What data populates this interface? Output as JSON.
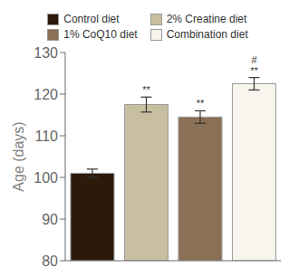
{
  "chart_data": {
    "type": "bar",
    "categories": [
      "Control diet",
      "2% Creatine diet",
      "1% CoQ10 diet",
      "Combination diet"
    ],
    "values": [
      101.0,
      117.5,
      114.5,
      122.5
    ],
    "errors": [
      1.0,
      1.8,
      1.5,
      1.5
    ],
    "colors": [
      "#2b1a0a",
      "#c8bfa0",
      "#8b7055",
      "#f8f4ee"
    ],
    "ylabel": "Age (days)",
    "ylim": [
      80,
      130
    ],
    "yticks": [
      80,
      90,
      100,
      110,
      120,
      130
    ],
    "tick_labels": "y",
    "legend": "top",
    "grid": false,
    "annotations": [
      {
        "category": "2% Creatine diet",
        "text": "**"
      },
      {
        "category": "1% CoQ10 diet",
        "text": "**"
      },
      {
        "category": "Combination diet",
        "text": "**"
      },
      {
        "category": "Combination diet",
        "text": "#"
      }
    ]
  }
}
